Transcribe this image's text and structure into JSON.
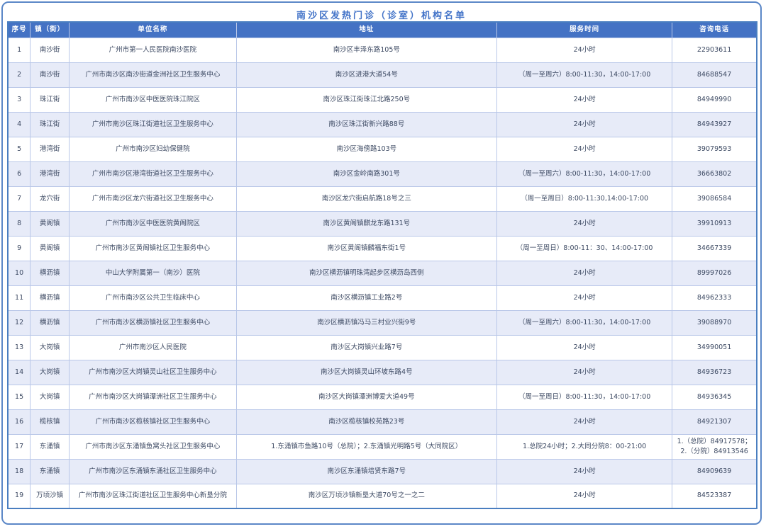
{
  "title": "南沙区发热门诊（诊室）机构名单",
  "colors": {
    "header_bg": "#4472c4",
    "header_text": "#ffffff",
    "row_alt_bg": "#e7ebf8",
    "grid_line": "#b9c7e8",
    "frame_border": "#4a7ec0",
    "title_text": "#4273c8",
    "body_text": "#3d4a63"
  },
  "table": {
    "headers": [
      "序号",
      "镇（街）",
      "单位名称",
      "地址",
      "服务时间",
      "咨询电话"
    ],
    "rows": [
      [
        "1",
        "南沙街",
        "广州市第一人民医院南沙医院",
        "南沙区丰泽东路105号",
        "24小时",
        "22903611"
      ],
      [
        "2",
        "南沙街",
        "广州市南沙区南沙街道金洲社区卫生服务中心",
        "南沙区进港大道54号",
        "（周一至周六）8:00-11:30，14:00-17:00",
        "84688547"
      ],
      [
        "3",
        "珠江街",
        "广州市南沙区中医医院珠江院区",
        "南沙区珠江街珠江北路250号",
        "24小时",
        "84949990"
      ],
      [
        "4",
        "珠江街",
        "广州市南沙区珠江街道社区卫生服务中心",
        "南沙区珠江街新兴路88号",
        "24小时",
        "84943927"
      ],
      [
        "5",
        "港湾街",
        "广州市南沙区妇幼保健院",
        "南沙区海傍路103号",
        "24小时",
        "39079593"
      ],
      [
        "6",
        "港湾街",
        "广州市南沙区港湾街道社区卫生服务中心",
        "南沙区金岭南路301号",
        "（周一至周六）8:00-11:30，14:00-17:00",
        "36663802"
      ],
      [
        "7",
        "龙穴街",
        "广州市南沙区龙穴街道社区卫生服务中心",
        "南沙区龙穴街启航路18号之三",
        "（周一至周日）8:00-11:30,14:00-17:00",
        "39086584"
      ],
      [
        "8",
        "黄阁镇",
        "广州市南沙区中医医院黄阁院区",
        "南沙区黄阁镇麒龙东路131号",
        "24小时",
        "39910913"
      ],
      [
        "9",
        "黄阁镇",
        "广州市南沙区黄阁镇社区卫生服务中心",
        "南沙区黄阁镇麟福东街1号",
        "（周一至周日）8:00-11：30、14:00-17:00",
        "34667339"
      ],
      [
        "10",
        "横沥镇",
        "中山大学附属第一（南沙）医院",
        "南沙区横沥镇明珠湾起步区横沥岛西侧",
        "24小时",
        "89997026"
      ],
      [
        "11",
        "横沥镇",
        "广州市南沙区公共卫生临床中心",
        "南沙区横沥镇工业路2号",
        "24小时",
        "84962333"
      ],
      [
        "12",
        "横沥镇",
        "广州市南沙区横沥镇社区卫生服务中心",
        "南沙区横沥镇冯马三村业兴街9号",
        "（周一至周六）8:00-11:30，14:00-17:00",
        "39088970"
      ],
      [
        "13",
        "大岗镇",
        "广州市南沙区人民医院",
        "南沙区大岗镇兴业路7号",
        "24小时",
        "34990051"
      ],
      [
        "14",
        "大岗镇",
        "广州市南沙区大岗镇灵山社区卫生服务中心",
        "南沙区大岗镇灵山环坡东路4号",
        "24小时",
        "84936723"
      ],
      [
        "15",
        "大岗镇",
        "广州市南沙区大岗镇潭洲社区卫生服务中心",
        "南沙区大岗镇潭洲博爱大道49号",
        "（周一至周日）8:00-11:30，14:00-17:00",
        "84936345"
      ],
      [
        "16",
        "榄核镇",
        "广州市南沙区榄核镇社区卫生服务中心",
        "南沙区榄核镇校苑路23号",
        "24小时",
        "84921307"
      ],
      [
        "17",
        "东涌镇",
        "广州市南沙区东涌镇鱼窝头社区卫生服务中心",
        "1.东涌镇市鱼路10号（总院）；2.东涌镇光明路5号（大同院区）",
        "1.总院24小时；2.大同分院8：00-21:00",
        "1.（总院）84917578；2.（分院）84913546"
      ],
      [
        "18",
        "东涌镇",
        "广州市南沙区东涌镇东涌社区卫生服务中心",
        "南沙区东涌镇培贤东路7号",
        "24小时",
        "84909639"
      ],
      [
        "19",
        "万顷沙镇",
        "广州市南沙区珠江街道社区卫生服务中心新垦分院",
        "南沙区万顷沙镇新垦大道70号之一之二",
        "24小时",
        "84523387"
      ]
    ]
  }
}
